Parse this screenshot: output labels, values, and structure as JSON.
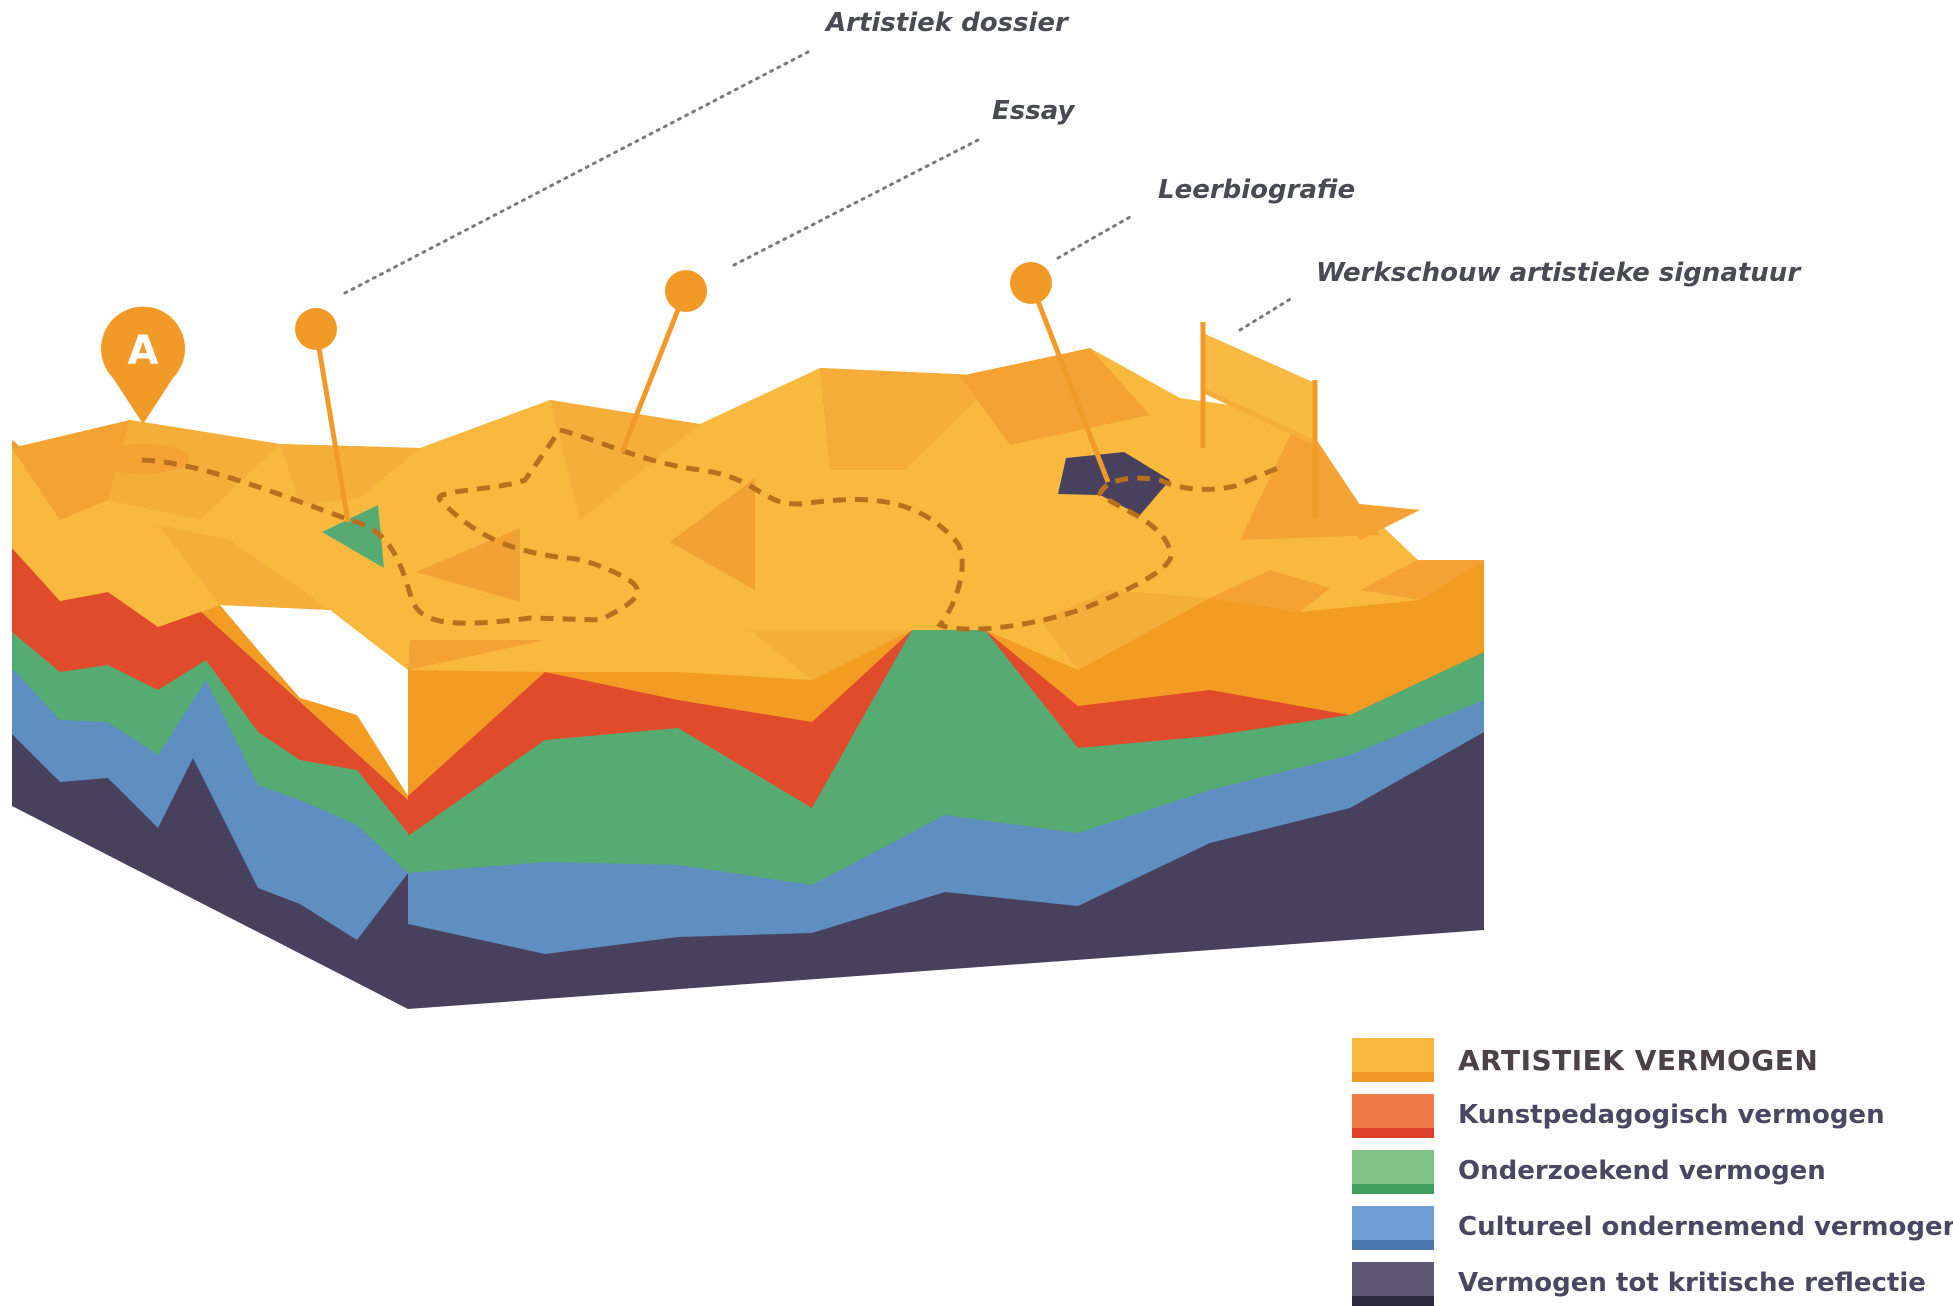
{
  "milestones": [
    {
      "label": "Artistiek dossier"
    },
    {
      "label": "Essay"
    },
    {
      "label": "Leerbiografie"
    },
    {
      "label": "Werkschouw artistieke signatuur"
    }
  ],
  "start_marker": {
    "label": "A",
    "color": "#F29A27"
  },
  "legend": [
    {
      "label": "ARTISTIEK VERMOGEN",
      "color_top": "#F8B93E",
      "color_bottom": "#F29A27"
    },
    {
      "label": "Kunstpedagogisch vermogen",
      "color_top": "#EC7B47",
      "color_bottom": "#DE3F2A"
    },
    {
      "label": "Onderzoekend vermogen",
      "color_top": "#7FC487",
      "color_bottom": "#3E9F5F"
    },
    {
      "label": "Cultureel ondernemend vermogen",
      "color_top": "#6C9FD4",
      "color_bottom": "#4A78AE"
    },
    {
      "label": "Vermogen tot kritische reflectie",
      "color_top": "#5D5675",
      "color_bottom": "#2E2A3E"
    }
  ],
  "colors": {
    "layer_yellow": "#F8B93E",
    "layer_orange": "#F39C24",
    "layer_red": "#E04C2B",
    "layer_green": "#56AB72",
    "layer_blue": "#5F8FC0",
    "layer_navy": "#48415E",
    "path": "#B9701E",
    "pin": "#F29A27",
    "text": "#4a4a55"
  }
}
